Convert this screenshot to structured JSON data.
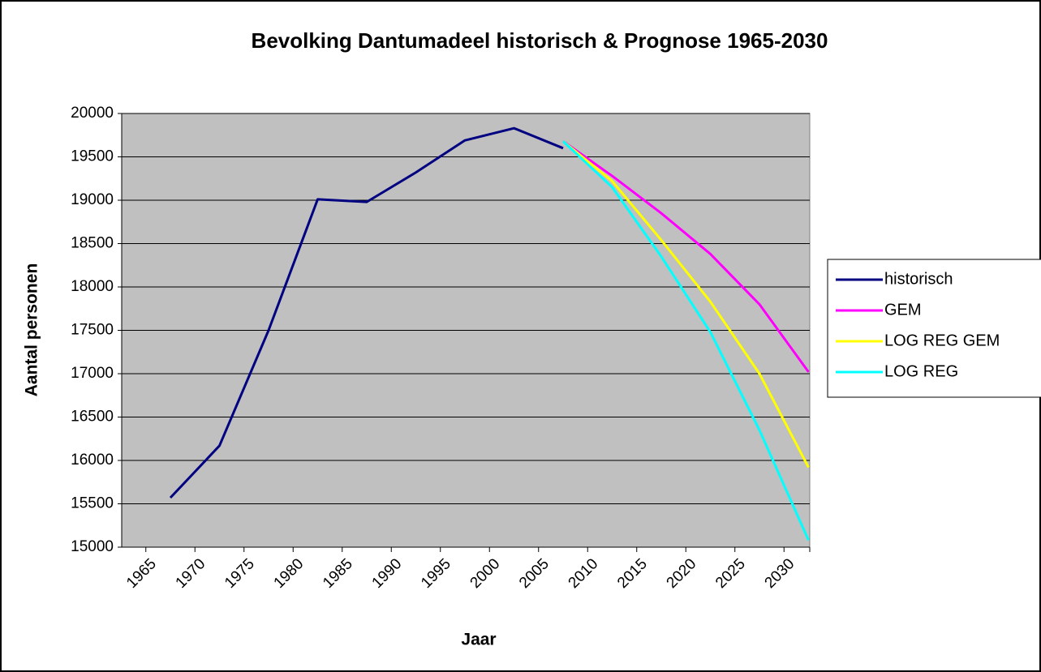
{
  "chart_data": {
    "type": "line",
    "title": "Bevolking Dantumadeel historisch & Prognose 1965-2030",
    "x_label": "Jaar",
    "y_label": "Aantal personen",
    "categories": [
      "1965",
      "1970",
      "1975",
      "1980",
      "1985",
      "1990",
      "1995",
      "2000",
      "2005",
      "2010",
      "2015",
      "2020",
      "2025",
      "2030"
    ],
    "series": [
      {
        "name": "historisch",
        "color": "#000080",
        "values": [
          15570,
          16170,
          17500,
          19010,
          18980,
          19320,
          19690,
          19830,
          19600,
          null,
          null,
          null,
          null,
          null
        ]
      },
      {
        "name": "GEM",
        "color": "#ff00ff",
        "values": [
          null,
          null,
          null,
          null,
          null,
          null,
          null,
          null,
          19680,
          19280,
          18850,
          18380,
          17800,
          17020
        ]
      },
      {
        "name": "LOG REG GEM",
        "color": "#ffff00",
        "values": [
          null,
          null,
          null,
          null,
          null,
          null,
          null,
          null,
          19680,
          19220,
          18540,
          17830,
          17000,
          15920
        ]
      },
      {
        "name": "LOG REG",
        "color": "#00ffff",
        "values": [
          null,
          null,
          null,
          null,
          null,
          null,
          null,
          null,
          19680,
          19150,
          18350,
          17480,
          16350,
          15080
        ]
      }
    ],
    "ylim": [
      15000,
      20000
    ],
    "yticks": [
      15000,
      15500,
      16000,
      16500,
      17000,
      17500,
      18000,
      18500,
      19000,
      19500,
      20000
    ],
    "grid": true,
    "legend": "right"
  }
}
